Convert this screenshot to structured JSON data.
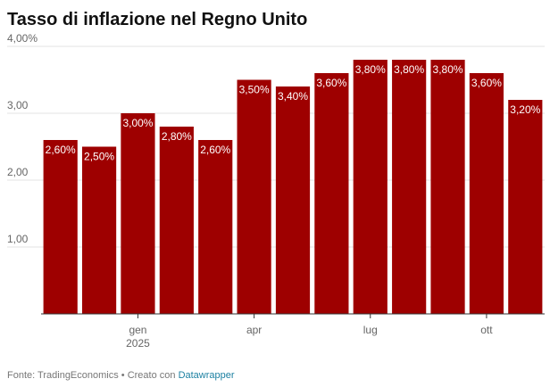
{
  "chart_data": {
    "type": "bar",
    "title": "Tasso di inflazione nel Regno Unito",
    "categories": [
      null,
      null,
      "gen",
      null,
      null,
      "apr",
      null,
      null,
      "lug",
      null,
      null,
      "ott",
      null
    ],
    "year_label": "2025",
    "values": [
      2.6,
      2.5,
      3.0,
      2.8,
      2.6,
      3.5,
      3.4,
      3.6,
      3.8,
      3.8,
      3.8,
      3.6,
      3.2
    ],
    "value_labels": [
      "2,60%",
      "2,50%",
      "3,00%",
      "2,80%",
      "2,60%",
      "3,50%",
      "3,40%",
      "3,60%",
      "3,80%",
      "3,80%",
      "3,80%",
      "3,60%",
      "3,20%"
    ],
    "color": "#9e0000",
    "ylim": [
      0,
      4
    ],
    "yticks": [
      {
        "value": 1,
        "label": "1,00"
      },
      {
        "value": 2,
        "label": "2,00"
      },
      {
        "value": 3,
        "label": "3,00"
      },
      {
        "value": 4,
        "label": "4,00%"
      }
    ],
    "grid": true,
    "source": "Fonte: TradingEconomics • Creato con",
    "credit": "Datawrapper"
  }
}
